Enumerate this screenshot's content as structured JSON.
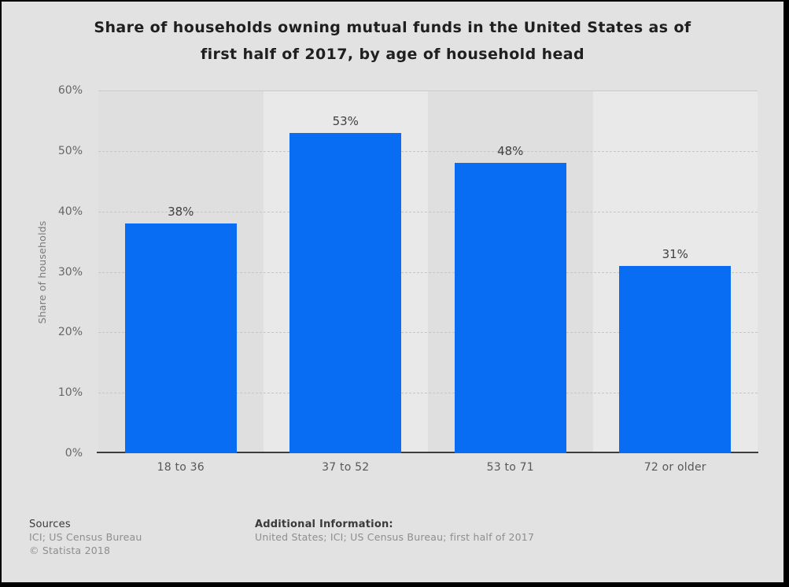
{
  "title": {
    "line1": "Share of households owning mutual funds in the United States as of",
    "line2": "first half of 2017, by age of household head"
  },
  "chart_data": {
    "type": "bar",
    "categories": [
      "18 to 36",
      "37 to 52",
      "53 to 71",
      "72 or older"
    ],
    "values": [
      38,
      53,
      48,
      31
    ],
    "value_labels": [
      "38%",
      "53%",
      "48%",
      "31%"
    ],
    "title": "Share of households owning mutual funds in the United States as of first half of 2017, by age of household head",
    "xlabel": "",
    "ylabel": "Share of households",
    "ylim": [
      0,
      60
    ],
    "ytick_step": 10,
    "yticks": [
      "0%",
      "10%",
      "20%",
      "30%",
      "40%",
      "50%",
      "60%"
    ],
    "grid": true,
    "legend": "none",
    "bar_color": "#086df2"
  },
  "colors": {
    "bar": "#086df2",
    "page_background": "#e2e2e2",
    "band_dark": "#dfdfdf",
    "band_light": "#e9e9e9",
    "gridline": "#c6c6c6",
    "axis_line": "#3d3d3d",
    "frame": "#000000"
  },
  "footer": {
    "sources_heading": "Sources",
    "sources_line": "ICI; US Census Bureau",
    "copyright": "© Statista 2018",
    "additional_heading": "Additional Information:",
    "additional_line": "United States; ICI; US Census Bureau; first half of 2017"
  }
}
